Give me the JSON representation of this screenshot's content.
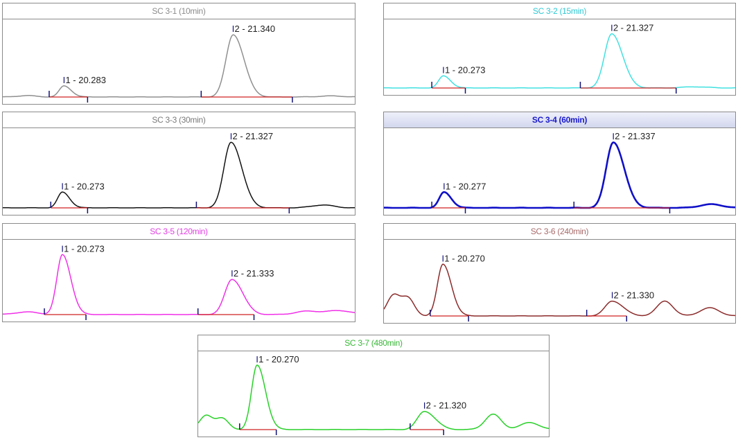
{
  "chart_data": [
    {
      "type": "line",
      "title": "SC 3-1 (10min)",
      "title_color": "#8c8c8c",
      "line_color": "#8f8f8f",
      "xlim": [
        19.9,
        22.1
      ],
      "ylim": [
        0,
        100
      ],
      "peaks": [
        {
          "label": "1 - 20.283",
          "rt": 20.283,
          "height": 16,
          "width": 0.03
        },
        {
          "label": "2 - 21.340",
          "rt": 21.34,
          "height": 90,
          "width": 0.045
        }
      ],
      "baselines": [
        {
          "start": 20.19,
          "end": 20.43
        },
        {
          "start": 21.14,
          "end": 21.71
        }
      ],
      "bumps": [
        {
          "rt": 20.05,
          "height": 2,
          "width": 0.06
        },
        {
          "rt": 21.95,
          "height": 1.5,
          "width": 0.08
        }
      ]
    },
    {
      "type": "line",
      "title": "SC 3-2 (15min)",
      "title_color": "#2ec9d4",
      "line_color": "#40e0e0",
      "xlim": [
        19.9,
        22.1
      ],
      "ylim": [
        0,
        100
      ],
      "peaks": [
        {
          "label": "1 - 20.273",
          "rt": 20.273,
          "height": 20,
          "width": 0.03
        },
        {
          "label": "2 - 21.327",
          "rt": 21.327,
          "height": 90,
          "width": 0.045
        }
      ],
      "baselines": [
        {
          "start": 20.2,
          "end": 20.41
        },
        {
          "start": 21.13,
          "end": 21.73
        }
      ],
      "bumps": [
        {
          "rt": 21.85,
          "height": 2,
          "width": 0.08
        }
      ]
    },
    {
      "type": "line",
      "title": "SC 3-3 (30min)",
      "title_color": "#7a7a7a",
      "line_color": "#111111",
      "xlim": [
        19.9,
        22.1
      ],
      "ylim": [
        0,
        100
      ],
      "peaks": [
        {
          "label": "1 - 20.273",
          "rt": 20.273,
          "height": 22,
          "width": 0.03
        },
        {
          "label": "2 - 21.327",
          "rt": 21.327,
          "height": 92,
          "width": 0.045
        }
      ],
      "baselines": [
        {
          "start": 20.2,
          "end": 20.43
        },
        {
          "start": 21.11,
          "end": 21.69
        }
      ],
      "bumps": [
        {
          "rt": 21.9,
          "height": 4,
          "width": 0.07
        }
      ]
    },
    {
      "type": "line",
      "title": "SC 3-4 (60min)",
      "title_color": "#1a1acc",
      "line_color": "#1010c8",
      "xlim": [
        19.9,
        22.1
      ],
      "ylim": [
        0,
        100
      ],
      "peaks": [
        {
          "label": "1 - 20.277",
          "rt": 20.277,
          "height": 22,
          "width": 0.03
        },
        {
          "label": "2 - 21.337",
          "rt": 21.337,
          "height": 92,
          "width": 0.045
        }
      ],
      "baselines": [
        {
          "start": 20.2,
          "end": 20.41
        },
        {
          "start": 21.09,
          "end": 21.69
        }
      ],
      "bumps": [
        {
          "rt": 21.95,
          "height": 5,
          "width": 0.07
        }
      ]
    },
    {
      "type": "line",
      "title": "SC 3-5 (120min)",
      "title_color": "#e040e0",
      "line_color": "#f030e8",
      "xlim": [
        19.9,
        22.1
      ],
      "ylim": [
        0,
        100
      ],
      "peaks": [
        {
          "label": "1 - 20.273",
          "rt": 20.273,
          "height": 90,
          "width": 0.035
        },
        {
          "label": "2 - 21.333",
          "rt": 21.333,
          "height": 53,
          "width": 0.045
        }
      ],
      "baselines": [
        {
          "start": 20.16,
          "end": 20.42
        },
        {
          "start": 21.12,
          "end": 21.47
        }
      ],
      "bumps": [
        {
          "rt": 20.05,
          "height": 4,
          "width": 0.07
        },
        {
          "rt": 21.8,
          "height": 5,
          "width": 0.07
        },
        {
          "rt": 22.0,
          "height": 6,
          "width": 0.08
        }
      ]
    },
    {
      "type": "line",
      "title": "SC 3-6 (240min)",
      "title_color": "#a86a6a",
      "line_color": "#8b2a2a",
      "xlim": [
        19.9,
        22.1
      ],
      "ylim": [
        0,
        100
      ],
      "peaks": [
        {
          "label": "1 - 20.270",
          "rt": 20.27,
          "height": 76,
          "width": 0.035
        },
        {
          "label": "2 - 21.330",
          "rt": 21.33,
          "height": 22,
          "width": 0.045
        }
      ],
      "baselines": [
        {
          "start": 20.19,
          "end": 20.43
        },
        {
          "start": 21.17,
          "end": 21.42
        }
      ],
      "bumps": [
        {
          "rt": 19.96,
          "height": 30,
          "width": 0.04
        },
        {
          "rt": 20.05,
          "height": 26,
          "width": 0.04
        },
        {
          "rt": 21.66,
          "height": 22,
          "width": 0.05
        },
        {
          "rt": 21.94,
          "height": 12,
          "width": 0.06
        }
      ]
    },
    {
      "type": "line",
      "title": "SC 3-7 (480min)",
      "title_color": "#38b838",
      "line_color": "#28d028",
      "xlim": [
        19.9,
        22.1
      ],
      "ylim": [
        0,
        100
      ],
      "peaks": [
        {
          "label": "1 - 20.270",
          "rt": 20.27,
          "height": 92,
          "width": 0.035
        },
        {
          "label": "2 - 21.320",
          "rt": 21.32,
          "height": 26,
          "width": 0.045
        }
      ],
      "baselines": [
        {
          "start": 20.16,
          "end": 20.39
        },
        {
          "start": 21.23,
          "end": 21.44
        }
      ],
      "bumps": [
        {
          "rt": 19.95,
          "height": 20,
          "width": 0.04
        },
        {
          "rt": 20.05,
          "height": 16,
          "width": 0.04
        },
        {
          "rt": 21.75,
          "height": 22,
          "width": 0.05
        },
        {
          "rt": 21.98,
          "height": 10,
          "width": 0.06
        }
      ]
    }
  ],
  "colors": {
    "baseline": "#d02020",
    "marker": "#10107a",
    "panel_border": "#8a8a8a"
  }
}
